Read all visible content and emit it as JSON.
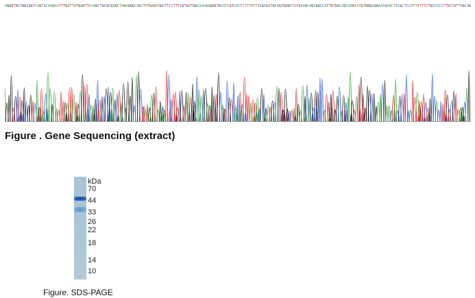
{
  "sequencing": {
    "caption": "Figure . Gene Sequencing (extract)",
    "trace_colors": {
      "A": "#2aa02a",
      "C": "#2255d8",
      "G": "#111111",
      "T": "#e02020"
    }
  },
  "sds_page": {
    "caption": "Figure. SDS-PAGE",
    "unit_label": "kDa",
    "markers": [
      "70",
      "44",
      "33",
      "26",
      "22",
      "18",
      "14",
      "10"
    ],
    "band_colors": {
      "main": "#0e4ea8",
      "faint": "#6f9dcc",
      "gel": "#aac5d8"
    }
  }
}
